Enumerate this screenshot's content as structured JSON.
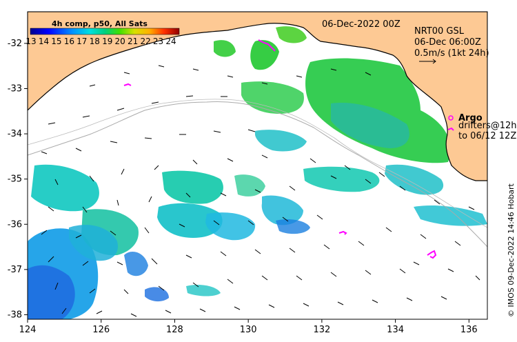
{
  "map": {
    "date_label": "06-Dec-2022 00Z",
    "product_line1": "NRT00 GSL",
    "product_line2": "06-Dec 06:00Z",
    "scale_label": "0.5m/s (1kt 24h)",
    "argo_label": "Argo",
    "drifters_line1": "drifters@12h",
    "drifters_line2": "to 06/12 12Z",
    "credit": "© IMOS 09-Dec-2022 14:46 Hobart",
    "colors": {
      "land": "#fdc994",
      "argo": "#ff00ff",
      "ocean": "#ffffff"
    }
  },
  "legend": {
    "title": "4h comp, p50, All Sats",
    "ticks": [
      "13",
      "14",
      "15",
      "16",
      "17",
      "18",
      "19",
      "20",
      "21",
      "22",
      "23",
      "24"
    ]
  },
  "axes": {
    "x_ticks": [
      "124",
      "126",
      "128",
      "130",
      "132",
      "134",
      "136"
    ],
    "y_ticks": [
      "-32",
      "-33",
      "-34",
      "-35",
      "-36",
      "-37",
      "-38"
    ],
    "x_range": [
      124,
      136.5
    ],
    "y_range": [
      -38.1,
      -31.3
    ]
  }
}
